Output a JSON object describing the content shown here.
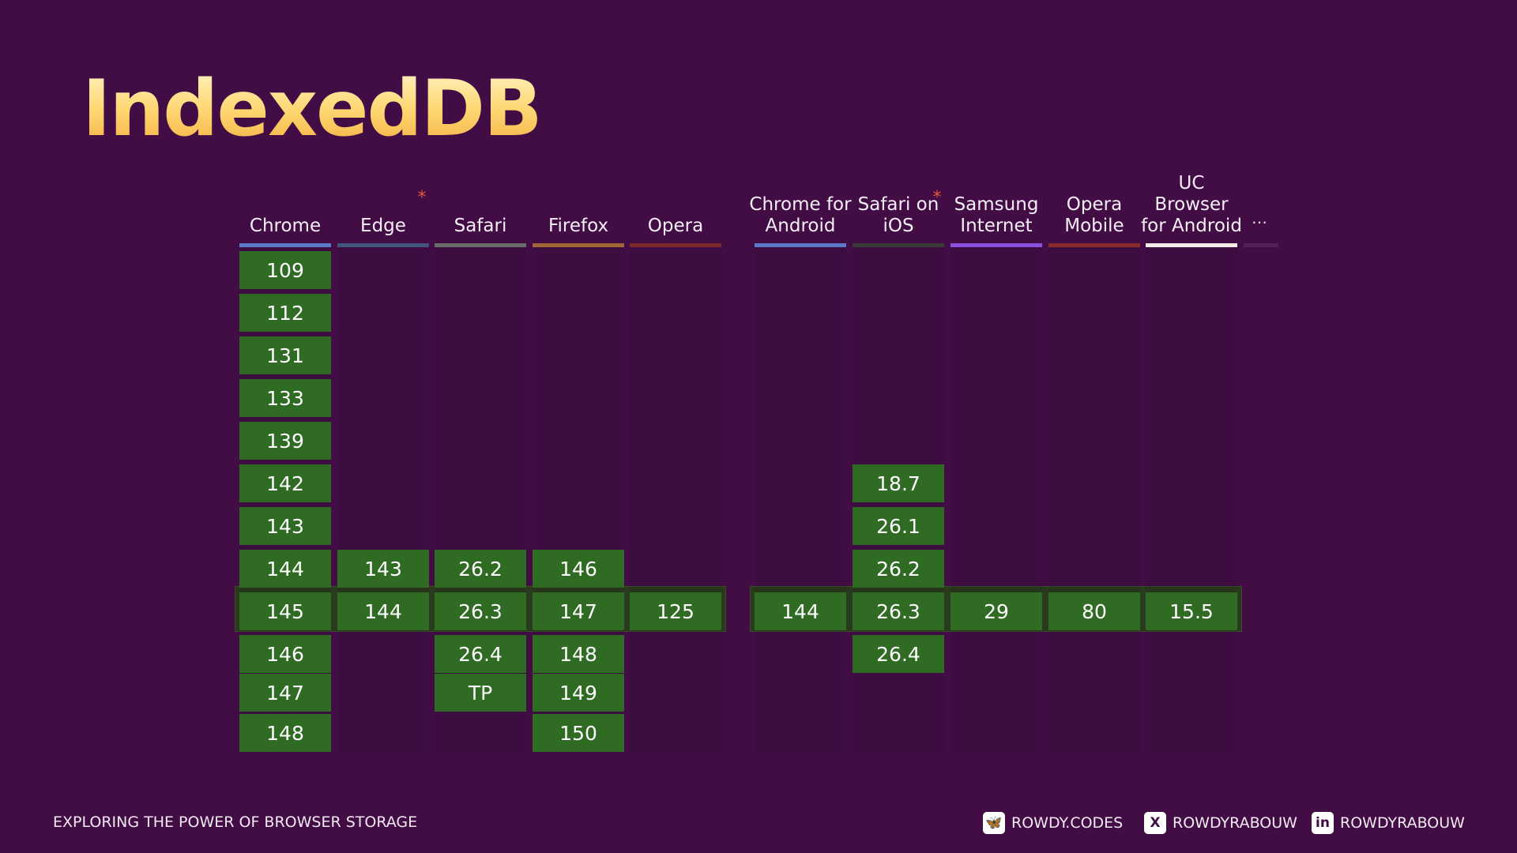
{
  "title": "IndexedDB",
  "footer": {
    "tagline": "EXPLORING THE POWER OF BROWSER STORAGE",
    "socials": [
      {
        "icon": "bluesky-icon",
        "label": "ROWDY.CODES"
      },
      {
        "icon": "x-icon",
        "label": "ROWDYRABOUW"
      },
      {
        "icon": "linkedin-icon",
        "label": "ROWDYRABOUW"
      }
    ]
  },
  "more_label": "…",
  "browsers": [
    {
      "name": "Chrome",
      "note": false,
      "color": "#5b78c9",
      "versions": [
        "109",
        "112",
        "131",
        "133",
        "139",
        "142",
        "143",
        "144",
        "145",
        "146",
        "147",
        "148"
      ]
    },
    {
      "name": "Edge",
      "note": true,
      "color": "#41557f",
      "versions": [
        "143",
        "144"
      ]
    },
    {
      "name": "Safari",
      "note": false,
      "color": "#6b6b6b",
      "versions": [
        "26.2",
        "26.3",
        "26.4",
        "TP"
      ]
    },
    {
      "name": "Firefox",
      "note": false,
      "color": "#a26636",
      "versions": [
        "146",
        "147",
        "148",
        "149",
        "150"
      ]
    },
    {
      "name": "Opera",
      "note": false,
      "color": "#7a2a2a",
      "versions": [
        "125"
      ]
    },
    {
      "name": "Chrome for Android",
      "note": false,
      "color": "#5b78c9",
      "versions": [
        "144"
      ]
    },
    {
      "name": "Safari on iOS",
      "note": true,
      "color": "#3a3a3a",
      "versions": [
        "18.7",
        "26.1",
        "26.2",
        "26.3",
        "26.4"
      ]
    },
    {
      "name": "Samsung Internet",
      "note": false,
      "color": "#8a4fe0",
      "versions": [
        "29"
      ]
    },
    {
      "name": "Opera Mobile",
      "note": false,
      "color": "#8a2a2a",
      "versions": [
        "80"
      ]
    },
    {
      "name": "UC Browser for Android",
      "note": false,
      "color": "#f4ece9",
      "versions": [
        "15.5"
      ]
    }
  ]
}
